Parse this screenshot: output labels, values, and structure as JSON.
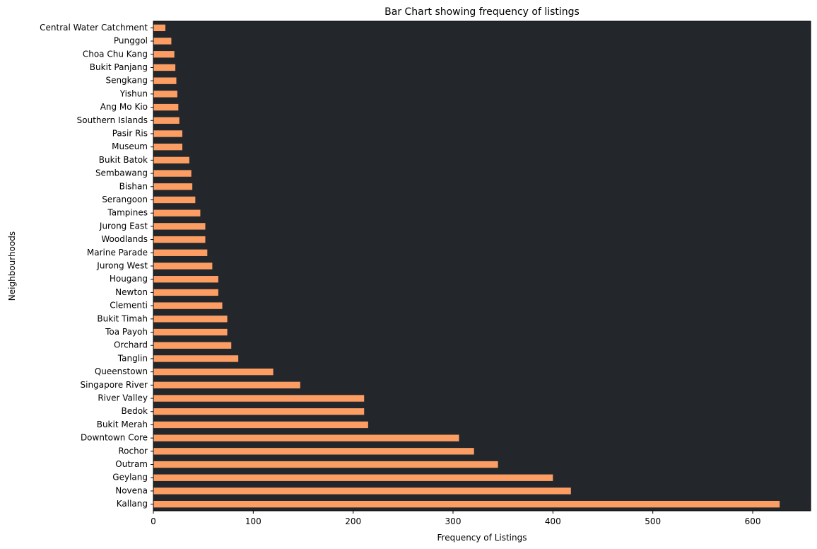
{
  "chart_data": {
    "type": "bar",
    "orientation": "horizontal",
    "title": "Bar Chart showing frequency of listings",
    "xlabel": "Frequency of Listings",
    "ylabel": "Neighbourhoods",
    "xlim": [
      0,
      658
    ],
    "xticks": [
      0,
      100,
      200,
      300,
      400,
      500,
      600
    ],
    "grid": false,
    "legend": "none",
    "categories": [
      "Kallang",
      "Novena",
      "Geylang",
      "Outram",
      "Rochor",
      "Downtown Core",
      "Bukit Merah",
      "Bedok",
      "River Valley",
      "Singapore River",
      "Queenstown",
      "Tanglin",
      "Orchard",
      "Toa Payoh",
      "Bukit Timah",
      "Clementi",
      "Newton",
      "Hougang",
      "Jurong West",
      "Marine Parade",
      "Woodlands",
      "Jurong East",
      "Tampines",
      "Serangoon",
      "Bishan",
      "Sembawang",
      "Bukit Batok",
      "Museum",
      "Pasir Ris",
      "Southern Islands",
      "Ang Mo Kio",
      "Yishun",
      "Sengkang",
      "Bukit Panjang",
      "Choa Chu Kang",
      "Punggol",
      "Central Water Catchment"
    ],
    "values": [
      627,
      418,
      400,
      345,
      321,
      306,
      215,
      211,
      211,
      147,
      120,
      85,
      78,
      74,
      74,
      69,
      65,
      65,
      59,
      54,
      52,
      52,
      47,
      42,
      39,
      38,
      36,
      29,
      29,
      26,
      25,
      24,
      23,
      22,
      21,
      18,
      12
    ],
    "colors": {
      "bar": "#fc9e64",
      "plot_background": "#23262a",
      "axis": "#000000"
    }
  }
}
